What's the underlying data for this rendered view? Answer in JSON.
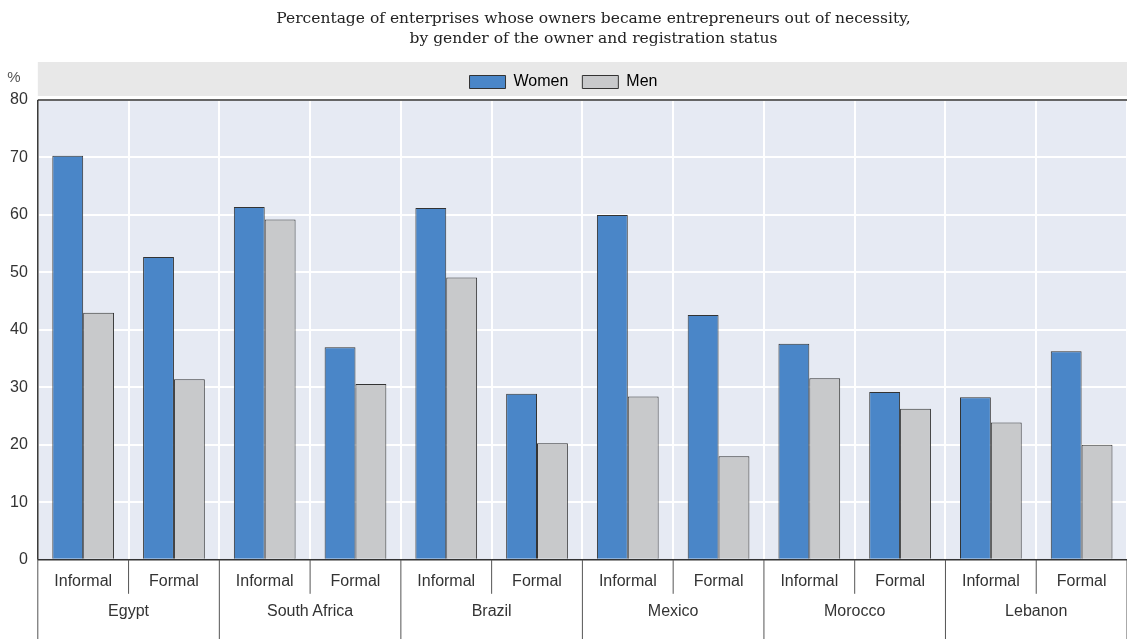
{
  "chart_data": {
    "type": "bar",
    "title": "Percentage of enterprises whose owners became entrepreneurs out of necessity,\nby gender of the owner and registration status",
    "ylabel": "%",
    "categories": [
      "Informal",
      "Formal",
      "Informal",
      "Formal",
      "Informal",
      "Formal",
      "Informal",
      "Formal",
      "Informal",
      "Formal",
      "Informal",
      "Formal"
    ],
    "annotations": [
      "Egypt",
      "South Africa",
      "Brazil",
      "Mexico",
      "Morocco",
      "Lebanon"
    ],
    "series": [
      {
        "name": "Women",
        "color": "#4a86c8",
        "values": [
          70.3,
          52.7,
          61.4,
          37.0,
          61.2,
          28.9,
          60.0,
          42.6,
          37.6,
          29.2,
          28.3,
          36.3
        ]
      },
      {
        "name": "Men",
        "color": "#c8c9cb",
        "values": [
          43.0,
          31.4,
          59.2,
          30.6,
          49.1,
          20.3,
          28.4,
          18.0,
          31.6,
          26.3,
          23.9,
          20.0
        ]
      }
    ],
    "ylim": [
      0,
      80
    ],
    "yticks": [
      0,
      10,
      20,
      30,
      40,
      50,
      60,
      70,
      80
    ],
    "grid": true,
    "legend": "top"
  }
}
